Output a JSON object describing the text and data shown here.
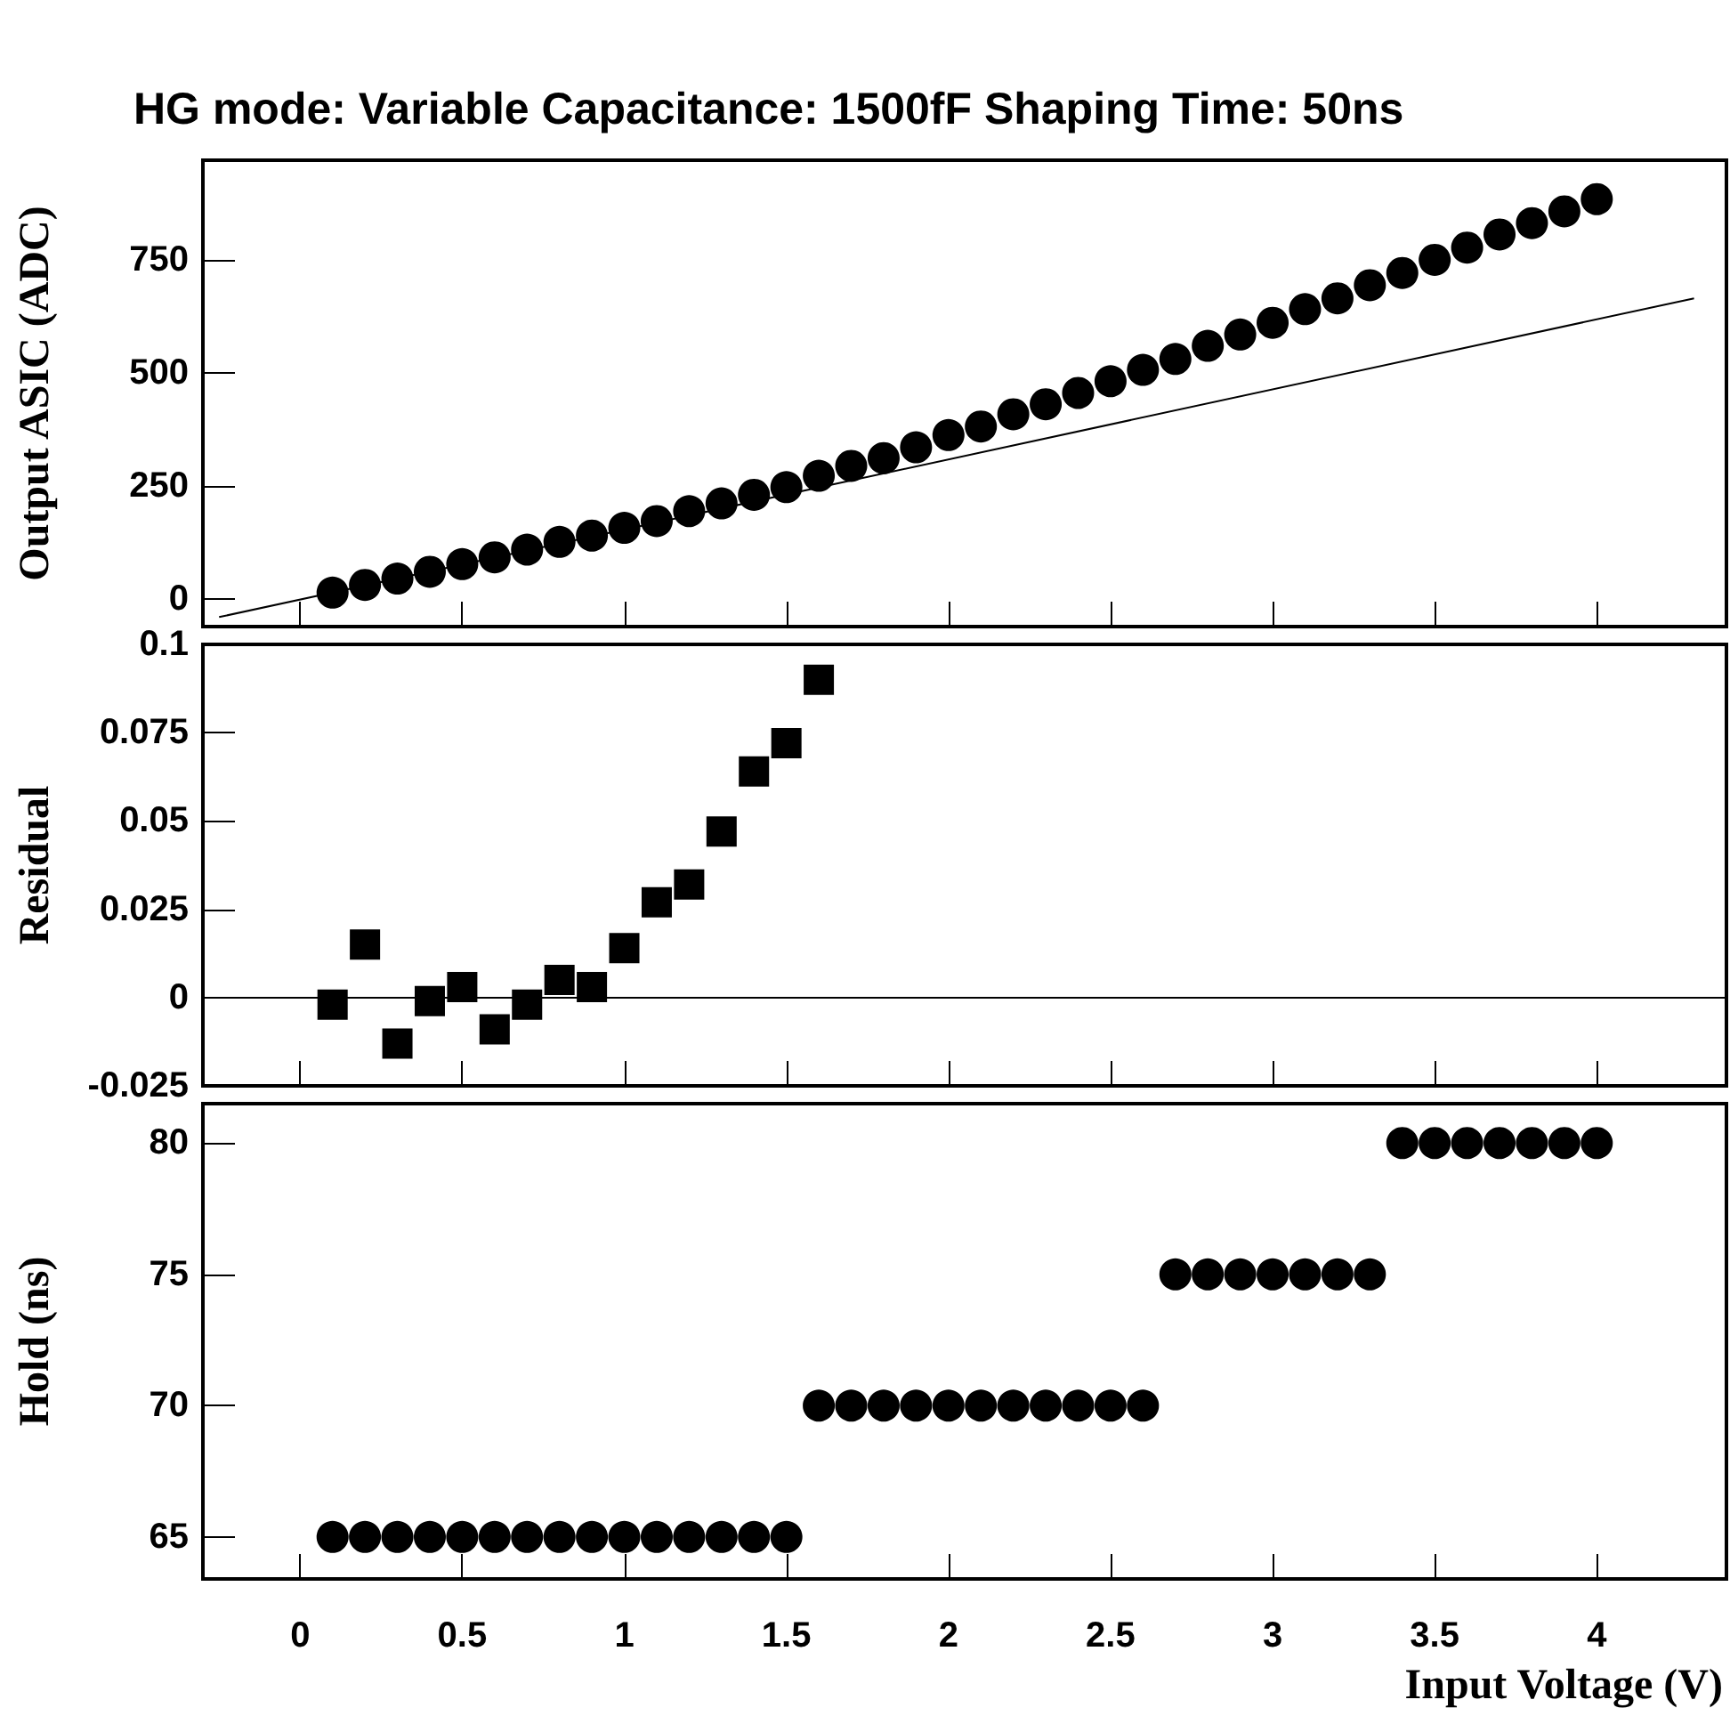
{
  "chart_data": [
    {
      "type": "scatter",
      "title": "HG mode: Variable Capacitance: 1500fF Shaping Time: 50ns",
      "ylabel": "Output ASIC (ADC)",
      "xlim": [
        -0.3,
        4.4
      ],
      "xticks": [
        0,
        0.5,
        1,
        1.5,
        2,
        2.5,
        3,
        3.5,
        4
      ],
      "ylim": [
        -60,
        970
      ],
      "yticks": [
        0,
        250,
        500,
        750
      ],
      "tick_labels": "y",
      "marker": "circle",
      "x": [
        0.1,
        0.2,
        0.3,
        0.4,
        0.5,
        0.6,
        0.7,
        0.8,
        0.9,
        1.0,
        1.1,
        1.2,
        1.3,
        1.4,
        1.5,
        1.6,
        1.7,
        1.8,
        1.9,
        2.0,
        2.1,
        2.2,
        2.3,
        2.4,
        2.5,
        2.6,
        2.7,
        2.8,
        2.9,
        3.0,
        3.1,
        3.2,
        3.3,
        3.4,
        3.5,
        3.6,
        3.7,
        3.8,
        3.9,
        4.0
      ],
      "series": [
        {
          "color": "#000000",
          "values": [
            15,
            32,
            46,
            61,
            78,
            93,
            110,
            127,
            141,
            158,
            173,
            195,
            212,
            231,
            248,
            273,
            295,
            312,
            336,
            363,
            382,
            409,
            431,
            456,
            482,
            507,
            531,
            560,
            585,
            611,
            641,
            665,
            694,
            721,
            750,
            777,
            806,
            831,
            857,
            884
          ]
        },
        {
          "type": "line",
          "color": "#000000",
          "marker": "none",
          "x": [
            -0.25,
            4.3
          ],
          "values": [
            -39,
            665
          ]
        }
      ]
    },
    {
      "type": "scatter",
      "ylabel": "Residual",
      "xlim": [
        -0.3,
        4.4
      ],
      "xticks": [
        0,
        0.5,
        1,
        1.5,
        2,
        2.5,
        3,
        3.5,
        4
      ],
      "ylim": [
        -0.025,
        0.1
      ],
      "yticks": [
        -0.025,
        0,
        0.025,
        0.05,
        0.075,
        0.1
      ],
      "tick_labels": "y",
      "marker": "square",
      "ref_lines": [
        {
          "axis": "y",
          "value": 0,
          "label": null,
          "color": "#000000"
        }
      ],
      "x": [
        0.1,
        0.2,
        0.3,
        0.4,
        0.5,
        0.6,
        0.7,
        0.8,
        0.9,
        1.0,
        1.1,
        1.2,
        1.3,
        1.4,
        1.5,
        1.6
      ],
      "series": [
        {
          "color": "#000000",
          "values": [
            -0.002,
            0.015,
            -0.013,
            -0.001,
            0.003,
            -0.009,
            -0.002,
            0.005,
            0.003,
            0.014,
            0.027,
            0.032,
            0.047,
            0.064,
            0.072,
            0.09
          ]
        }
      ]
    },
    {
      "type": "scatter",
      "ylabel": "Hold (ns)",
      "xlabel": "Input Voltage (V)",
      "xlim": [
        -0.3,
        4.4
      ],
      "xticks": [
        0,
        0.5,
        1,
        1.5,
        2,
        2.5,
        3,
        3.5,
        4
      ],
      "ylim": [
        63.4,
        81.5
      ],
      "yticks": [
        65,
        70,
        75,
        80
      ],
      "marker": "circle",
      "x": [
        0.1,
        0.2,
        0.3,
        0.4,
        0.5,
        0.6,
        0.7,
        0.8,
        0.9,
        1.0,
        1.1,
        1.2,
        1.3,
        1.4,
        1.5,
        1.6,
        1.7,
        1.8,
        1.9,
        2.0,
        2.1,
        2.2,
        2.3,
        2.4,
        2.5,
        2.6,
        2.7,
        2.8,
        2.9,
        3.0,
        3.1,
        3.2,
        3.3,
        3.4,
        3.5,
        3.6,
        3.7,
        3.8,
        3.9,
        4.0
      ],
      "series": [
        {
          "color": "#000000",
          "values": [
            65,
            65,
            65,
            65,
            65,
            65,
            65,
            65,
            65,
            65,
            65,
            65,
            65,
            65,
            65,
            70,
            70,
            70,
            70,
            70,
            70,
            70,
            70,
            70,
            70,
            70,
            75,
            75,
            75,
            75,
            75,
            75,
            75,
            80,
            80,
            80,
            80,
            80,
            80,
            80
          ]
        }
      ]
    }
  ]
}
